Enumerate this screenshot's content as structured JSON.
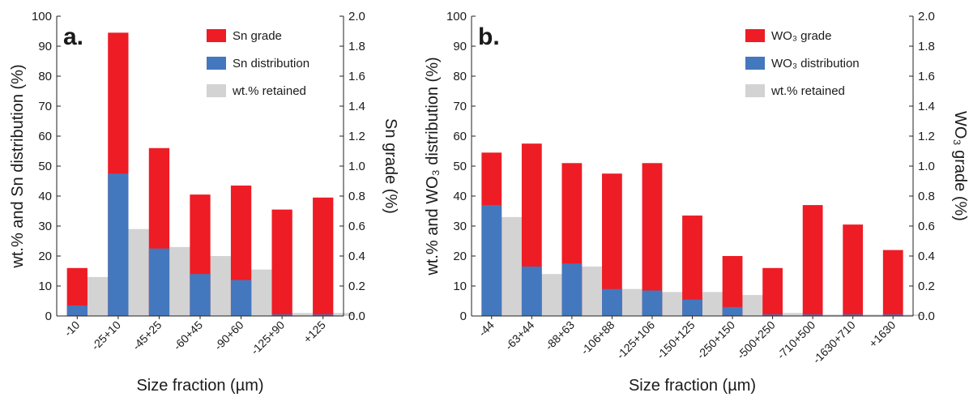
{
  "chart_data": [
    {
      "type": "bar",
      "panel_label": "a.",
      "xlabel": "Size fraction (µm)",
      "ylabel_left": "wt.% and Sn distribution (%)",
      "ylabel_right": "Sn grade (%)",
      "ylim_left": [
        0,
        100
      ],
      "ylim_right": [
        0,
        2.0
      ],
      "left_ticks": [
        "0",
        "10",
        "20",
        "30",
        "40",
        "50",
        "60",
        "70",
        "80",
        "90",
        "100"
      ],
      "right_ticks": [
        "0.0",
        "0.2",
        "0.4",
        "0.6",
        "0.8",
        "1.0",
        "1.2",
        "1.4",
        "1.6",
        "1.8",
        "2.0"
      ],
      "categories": [
        "-10",
        "-25+10",
        "-45+25",
        "-60+45",
        "-90+60",
        "-125+90",
        "+125"
      ],
      "legend_position": "top-right",
      "series": [
        {
          "name": "Sn grade",
          "axis": "right",
          "color": "#ee1c25",
          "values": [
            0.32,
            1.89,
            1.12,
            0.81,
            0.87,
            0.71,
            0.79
          ]
        },
        {
          "name": "Sn distribution",
          "axis": "left",
          "color": "#4478be",
          "values": [
            3.5,
            47.5,
            22.5,
            14.0,
            12.0,
            0.5,
            0.5
          ]
        },
        {
          "name": "wt.% retained",
          "axis": "left",
          "color": "#d3d3d3",
          "values": [
            13,
            29,
            23,
            20,
            15.5,
            1,
            1
          ]
        }
      ]
    },
    {
      "type": "bar",
      "panel_label": "b.",
      "xlabel": "Size fraction (µm)",
      "ylabel_left": "wt.% and WO₃ distribution (%)",
      "ylabel_right": "WO₃ grade (%)",
      "ylim_left": [
        0,
        100
      ],
      "ylim_right": [
        0,
        2.0
      ],
      "left_ticks": [
        "0",
        "10",
        "20",
        "30",
        "40",
        "50",
        "60",
        "70",
        "80",
        "90",
        "100"
      ],
      "right_ticks": [
        "0.0",
        "0.2",
        "0.4",
        "0.6",
        "0.8",
        "1.0",
        "1.2",
        "1.4",
        "1.6",
        "1.8",
        "2.0"
      ],
      "categories": [
        "-44",
        "-63+44",
        "-88+63",
        "-106+88",
        "-125+106",
        "-150+125",
        "-250+150",
        "-500+250",
        "-710+500",
        "-1630+710",
        "+1630"
      ],
      "legend_position": "top-right",
      "series": [
        {
          "name": "WO₃ grade",
          "axis": "right",
          "color": "#ee1c25",
          "values": [
            1.09,
            1.15,
            1.02,
            0.95,
            1.02,
            0.67,
            0.4,
            0.32,
            0.74,
            0.61,
            0.44
          ]
        },
        {
          "name": "WO₃ distribution",
          "axis": "left",
          "color": "#4478be",
          "values": [
            37,
            16.5,
            17.5,
            9,
            8.5,
            5.5,
            3,
            0.5,
            0.5,
            0.5,
            0.5
          ]
        },
        {
          "name": "wt.% retained",
          "axis": "left",
          "color": "#d3d3d3",
          "values": [
            33,
            14,
            16.5,
            9,
            8,
            8,
            7,
            1,
            0.5,
            0.5,
            0.5
          ]
        }
      ]
    }
  ]
}
